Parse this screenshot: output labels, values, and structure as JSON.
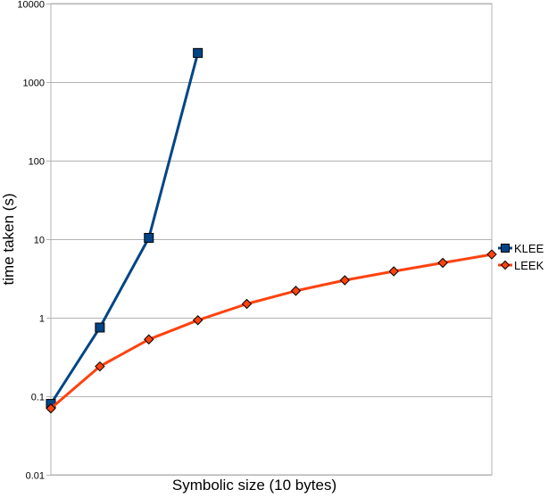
{
  "chart_data": {
    "type": "line",
    "xlabel": "Symbolic size (10 bytes)",
    "ylabel": "time taken (s)",
    "yscale": "log",
    "ylim": [
      0.01,
      10000
    ],
    "yticks": [
      "10000",
      "1000",
      "100",
      "10",
      "1",
      "0.1",
      "0.01"
    ],
    "x": [
      1,
      2,
      3,
      4,
      5,
      6,
      7,
      8,
      9,
      10
    ],
    "xlim": [
      1,
      10
    ],
    "grid": "horizontal",
    "legend_position": "right",
    "series": [
      {
        "name": "KLEE",
        "color": "#004586",
        "marker": "square",
        "x": [
          1,
          2,
          3,
          4
        ],
        "values": [
          0.08,
          0.75,
          10.4,
          2350
        ]
      },
      {
        "name": "LEEK",
        "color": "#ff420e",
        "marker": "diamond",
        "x": [
          1,
          2,
          3,
          4,
          5,
          6,
          7,
          8,
          9,
          10
        ],
        "values": [
          0.07,
          0.24,
          0.53,
          0.93,
          1.5,
          2.2,
          3.0,
          3.9,
          5.0,
          6.4
        ]
      }
    ]
  }
}
